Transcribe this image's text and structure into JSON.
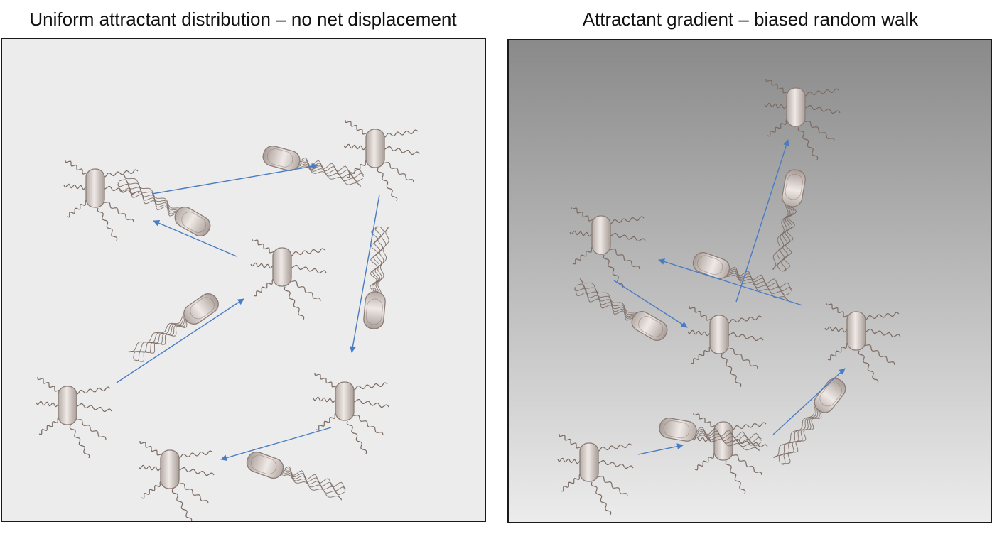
{
  "panels": [
    {
      "id": "uniform",
      "title": "Uniform attractant distribution – no net displacement",
      "background": "#ececec"
    },
    {
      "id": "gradient",
      "title": "Attractant gradient – biased random walk",
      "gradient_top": "#8a8a8a",
      "gradient_bottom": "#ececec"
    }
  ],
  "colors": {
    "arrow": "#4a7cc4",
    "bacterium_body": "#d8d0cc",
    "bacterium_outline": "#8a7c76",
    "flagella": "#7a6a62"
  }
}
